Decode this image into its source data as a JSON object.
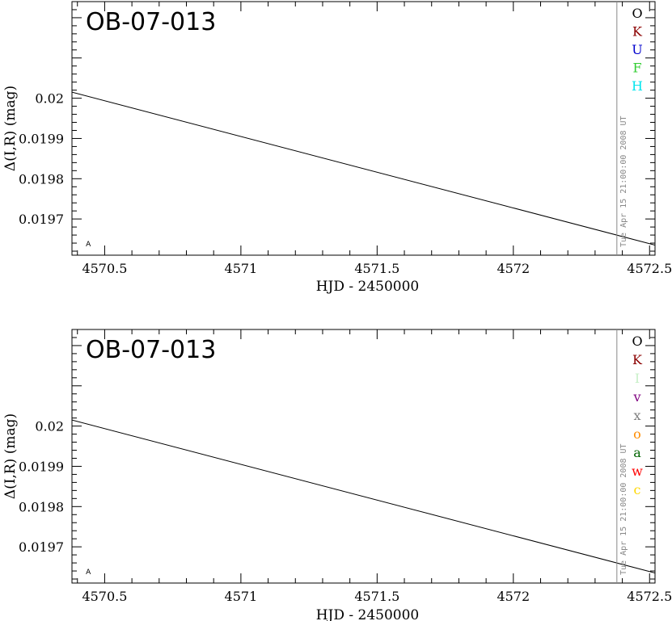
{
  "chart_data": [
    {
      "type": "line",
      "title": "OB-07-013",
      "xlabel": "HJD - 2450000",
      "ylabel": "Δ(I,R) (mag)",
      "xlim": [
        4570.38,
        4572.52
      ],
      "ylim": [
        0.01961,
        0.02024
      ],
      "xticks": [
        {
          "value": 4570.5,
          "label": "4570.5"
        },
        {
          "value": 4571.0,
          "label": "4571"
        },
        {
          "value": 4571.5,
          "label": "4571.5"
        },
        {
          "value": 4572.0,
          "label": "4572"
        },
        {
          "value": 4572.5,
          "label": "4572.5"
        }
      ],
      "yticks": [
        {
          "value": 0.0197,
          "label": "0.0197"
        },
        {
          "value": 0.0198,
          "label": "0.0198"
        },
        {
          "value": 0.0199,
          "label": "0.0199"
        },
        {
          "value": 0.02,
          "label": "0.02"
        }
      ],
      "series": [
        {
          "x": [
            4570.38,
            4572.52
          ],
          "y": [
            0.020015,
            0.019635
          ],
          "color": "#000000"
        }
      ],
      "marker": {
        "x": 4572.38,
        "label": "Tue Apr 15 21:00:00 2008 UT",
        "color": "#888888"
      },
      "corner_label": {
        "text": "A",
        "x": 4570.44,
        "y": 0.019632
      },
      "legend": {
        "placement": "right",
        "items": [
          {
            "label": "O",
            "color": "#000000"
          },
          {
            "label": "K",
            "color": "#8b0000"
          },
          {
            "label": "U",
            "color": "#0000cd"
          },
          {
            "label": "F",
            "color": "#32cd32"
          },
          {
            "label": "H",
            "color": "#00e5ee"
          }
        ]
      }
    },
    {
      "type": "line",
      "title": "OB-07-013",
      "xlabel": "HJD - 2450000",
      "ylabel": "Δ(I,R) (mag)",
      "xlim": [
        4570.38,
        4572.52
      ],
      "ylim": [
        0.01961,
        0.02024
      ],
      "xticks": [
        {
          "value": 4570.5,
          "label": "4570.5"
        },
        {
          "value": 4571.0,
          "label": "4571"
        },
        {
          "value": 4571.5,
          "label": "4571.5"
        },
        {
          "value": 4572.0,
          "label": "4572"
        },
        {
          "value": 4572.5,
          "label": "4572.5"
        }
      ],
      "yticks": [
        {
          "value": 0.0197,
          "label": "0.0197"
        },
        {
          "value": 0.0198,
          "label": "0.0198"
        },
        {
          "value": 0.0199,
          "label": "0.0199"
        },
        {
          "value": 0.02,
          "label": "0.02"
        }
      ],
      "series": [
        {
          "x": [
            4570.38,
            4572.52
          ],
          "y": [
            0.020015,
            0.019635
          ],
          "color": "#000000"
        }
      ],
      "marker": {
        "x": 4572.38,
        "label": "Tue Apr 15 21:00:00 2008 UT",
        "color": "#888888"
      },
      "corner_label": {
        "text": "A",
        "x": 4570.44,
        "y": 0.019632
      },
      "legend": {
        "placement": "right",
        "items": [
          {
            "label": "O",
            "color": "#000000"
          },
          {
            "label": "K",
            "color": "#8b0000"
          },
          {
            "label": "I",
            "color": "#c8f0c8"
          },
          {
            "label": "v",
            "color": "#800080"
          },
          {
            "label": "x",
            "color": "#808080"
          },
          {
            "label": "o",
            "color": "#ff8c00"
          },
          {
            "label": "a",
            "color": "#006400"
          },
          {
            "label": "w",
            "color": "#ff0000"
          },
          {
            "label": "c",
            "color": "#ffd700"
          }
        ]
      }
    }
  ]
}
